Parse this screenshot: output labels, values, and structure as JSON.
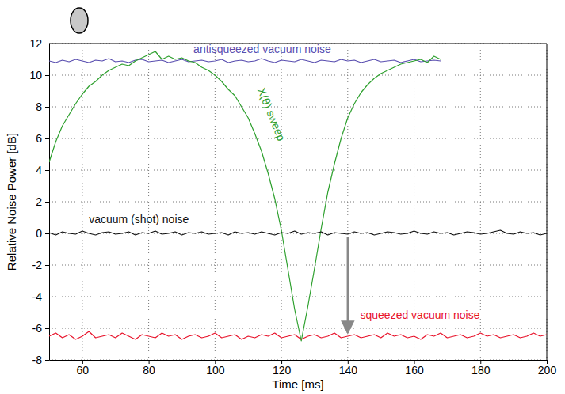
{
  "chart_data": {
    "type": "line",
    "x_label": "Time [ms]",
    "y_label": "Relative Noise Power [dB]",
    "xlim": [
      50,
      200
    ],
    "xticks": [
      60,
      80,
      100,
      120,
      140,
      160,
      180,
      200
    ],
    "ylim": [
      -8,
      12
    ],
    "yticks": [
      -8,
      -6,
      -4,
      -2,
      0,
      2,
      4,
      6,
      8,
      10,
      12
    ],
    "grid": true,
    "x": [
      50,
      52,
      54,
      56,
      58,
      60,
      62,
      64,
      66,
      68,
      70,
      72,
      74,
      76,
      78,
      80,
      82,
      84,
      86,
      88,
      90,
      92,
      94,
      96,
      98,
      100,
      102,
      104,
      106,
      108,
      110,
      112,
      114,
      116,
      118,
      120,
      122,
      124,
      126,
      128,
      130,
      132,
      134,
      136,
      138,
      140,
      142,
      144,
      146,
      148,
      150,
      152,
      154,
      156,
      158,
      160,
      162,
      164,
      166,
      168,
      170,
      172,
      174,
      176,
      178,
      180,
      182,
      184,
      186,
      188,
      190,
      192,
      194,
      196,
      198,
      200
    ],
    "series": [
      {
        "name": "antisqueezed vacuum noise",
        "color": "#5a4fb0",
        "values": [
          10.9,
          10.8,
          10.95,
          10.85,
          11.0,
          10.9,
          10.8,
          10.95,
          10.9,
          11.05,
          10.85,
          10.9,
          10.8,
          10.95,
          11.0,
          10.85,
          10.9,
          10.95,
          10.8,
          10.9,
          11.0,
          10.85,
          10.9,
          10.95,
          10.85,
          10.9,
          11.0,
          10.8,
          10.9,
          10.95,
          10.85,
          10.9,
          11.05,
          10.9,
          10.8,
          10.95,
          10.9,
          10.85,
          11.0,
          10.9,
          10.8,
          10.95,
          10.9,
          10.85,
          11.0,
          10.9,
          10.95,
          10.8,
          10.9,
          11.0,
          10.85,
          10.9,
          10.95,
          10.8,
          10.9,
          11.0,
          10.85,
          10.9,
          10.95,
          10.9,
          null,
          null,
          null,
          null,
          null,
          null,
          null,
          null,
          null,
          null,
          null,
          null,
          null,
          null,
          null,
          null
        ]
      },
      {
        "name": "X(θ) sweep",
        "color": "#2ea02e",
        "values": [
          4.5,
          5.8,
          6.8,
          7.5,
          8.2,
          8.8,
          9.3,
          9.6,
          10.0,
          10.3,
          10.5,
          10.7,
          10.6,
          10.9,
          11.1,
          11.3,
          11.5,
          11.0,
          11.2,
          11.0,
          11.1,
          10.9,
          10.8,
          10.5,
          10.3,
          10.0,
          9.6,
          9.1,
          8.7,
          8.0,
          7.3,
          6.3,
          5.2,
          3.8,
          2.2,
          0.2,
          -2.3,
          -4.8,
          -6.8,
          -4.6,
          -2.2,
          0.3,
          2.6,
          4.4,
          6.0,
          7.3,
          8.2,
          8.9,
          9.4,
          9.8,
          10.1,
          10.3,
          10.5,
          10.7,
          10.8,
          10.9,
          11.0,
          10.8,
          11.2,
          11.0,
          null,
          null,
          null,
          null,
          null,
          null,
          null,
          null,
          null,
          null,
          null,
          null,
          null,
          null,
          null,
          null
        ]
      },
      {
        "name": "vacuum (shot) noise",
        "color": "#111111",
        "values": [
          0.05,
          -0.1,
          0.1,
          0.0,
          -0.05,
          0.15,
          0.0,
          -0.1,
          0.05,
          0.1,
          -0.05,
          0.0,
          0.1,
          -0.1,
          0.05,
          0.0,
          0.15,
          -0.05,
          0.0,
          0.1,
          -0.1,
          0.05,
          0.0,
          0.1,
          -0.05,
          0.0,
          0.05,
          -0.1,
          0.1,
          0.0,
          0.05,
          -0.05,
          0.1,
          0.0,
          -0.1,
          0.05,
          0.0,
          0.15,
          -0.05,
          0.05,
          0.0,
          0.1,
          -0.1,
          0.05,
          0.0,
          -0.05,
          0.1,
          0.0,
          0.05,
          -0.1,
          0.0,
          0.1,
          0.05,
          -0.05,
          0.0,
          0.15,
          0.0,
          -0.05,
          0.1,
          0.0,
          0.05,
          -0.1,
          0.0,
          0.1,
          0.05,
          -0.05,
          0.0,
          0.1,
          0.2,
          0.0,
          -0.05,
          0.1,
          0.0,
          0.05,
          -0.1,
          0.0
        ]
      },
      {
        "name": "squeezed vacuum noise",
        "color": "#e8132b",
        "values": [
          -6.5,
          -6.3,
          -6.6,
          -6.4,
          -6.7,
          -6.5,
          -6.2,
          -6.6,
          -6.5,
          -6.4,
          -6.6,
          -6.3,
          -6.5,
          -6.7,
          -6.4,
          -6.5,
          -6.6,
          -6.3,
          -6.5,
          -6.4,
          -6.7,
          -6.5,
          -6.4,
          -6.6,
          -6.5,
          -6.3,
          -6.6,
          -6.5,
          -6.4,
          -6.7,
          -6.5,
          -6.6,
          -6.4,
          -6.5,
          -6.3,
          -6.6,
          -6.5,
          -6.4,
          -6.7,
          -6.5,
          -6.4,
          -6.6,
          -6.5,
          -6.3,
          -6.6,
          -6.5,
          -6.4,
          -6.6,
          -6.5,
          -6.4,
          -6.6,
          -6.3,
          -6.5,
          -6.4,
          -6.6,
          -6.5,
          -6.7,
          -6.4,
          -6.5,
          -6.3,
          -6.6,
          -6.5,
          -6.4,
          -6.6,
          -6.5,
          -6.3,
          -6.5,
          -6.4,
          -6.6,
          -6.5,
          -6.4,
          -6.6,
          -6.5,
          -6.3,
          -6.5,
          -6.4
        ]
      }
    ]
  }
}
